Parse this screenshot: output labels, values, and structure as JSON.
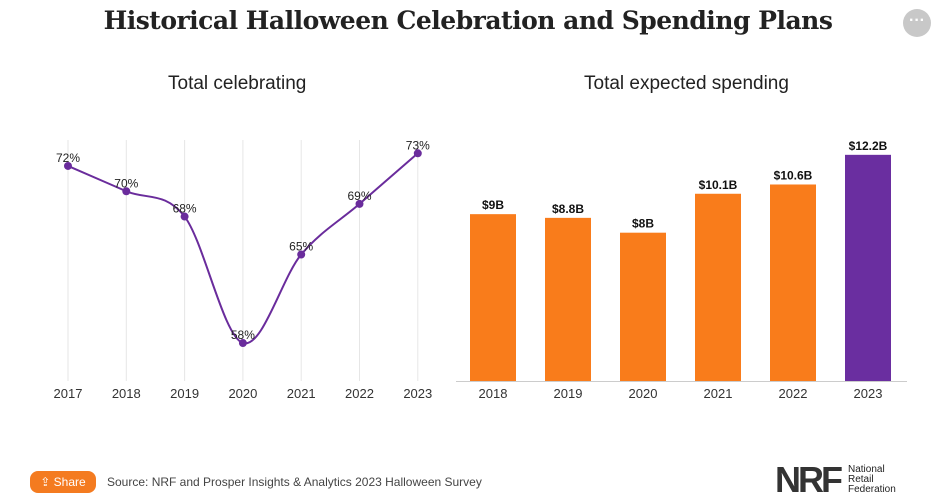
{
  "title": "Historical Halloween Celebration and Spending Plans",
  "more_icon": "ellipsis-icon",
  "chart_data": [
    {
      "type": "line",
      "title": "Total celebrating",
      "categories": [
        "2017",
        "2018",
        "2019",
        "2020",
        "2021",
        "2022",
        "2023"
      ],
      "values": [
        72,
        70,
        68,
        58,
        65,
        69,
        73
      ],
      "labels": [
        "72%",
        "70%",
        "68%",
        "58%",
        "65%",
        "69%",
        "73%"
      ],
      "ylim": [
        55,
        75
      ],
      "grid": "vertical",
      "color": "#6a2c9c"
    },
    {
      "type": "bar",
      "title": "Total expected spending",
      "categories": [
        "2018",
        "2019",
        "2020",
        "2021",
        "2022",
        "2023"
      ],
      "values": [
        9,
        8.8,
        8,
        10.1,
        10.6,
        12.2
      ],
      "labels": [
        "$9B",
        "$8.8B",
        "$8B",
        "$10.1B",
        "$10.6B",
        "$12.2B"
      ],
      "ylim": [
        0,
        13
      ],
      "colors": [
        "#f97c1b",
        "#f97c1b",
        "#f97c1b",
        "#f97c1b",
        "#f97c1b",
        "#6a2ea0"
      ]
    }
  ],
  "footer": {
    "share_label": "Share",
    "share_icon": "share-icon",
    "source": "Source: NRF and Prosper Insights & Analytics 2023 Halloween Survey",
    "logo": {
      "mark": "NRF",
      "line1": "National",
      "line2": "Retail",
      "line3": "Federation"
    }
  }
}
